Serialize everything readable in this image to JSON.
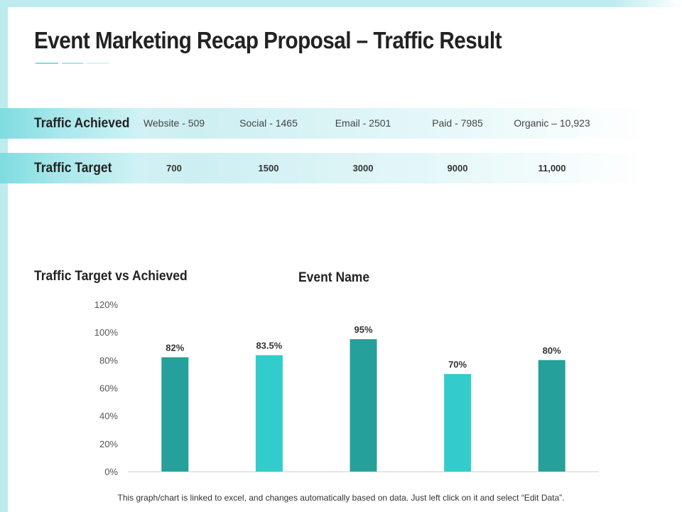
{
  "slide": {
    "title": "Event Marketing Recap Proposal – Traffic Result",
    "accent_color": "#26a69a",
    "accent_color_light": "#33cccc"
  },
  "traffic_achieved": {
    "label": "Traffic Achieved",
    "items": [
      "Website - 509",
      "Social - 1465",
      "Email - 2501",
      "Paid - 7985",
      "Organic – 10,923"
    ]
  },
  "traffic_target": {
    "label": "Traffic Target",
    "items": [
      "700",
      "1500",
      "3000",
      "9000",
      "11,000"
    ]
  },
  "chart_section_title": "Traffic Target vs Achieved",
  "footnote": "This graph/chart is linked to excel, and changes automatically based on data. Just left click on it and select “Edit Data”.",
  "chart_data": {
    "type": "bar",
    "title": "Event Name",
    "xlabel": "",
    "ylabel": "",
    "categories": [
      "",
      "",
      "",
      "",
      ""
    ],
    "values": [
      82,
      83.5,
      95,
      70,
      80
    ],
    "data_labels": [
      "82%",
      "83.5%",
      "95%",
      "70%",
      "80%"
    ],
    "bar_colors": [
      "#26a09a",
      "#33cccc",
      "#26a09a",
      "#33cccc",
      "#26a09a"
    ],
    "ylim": [
      0,
      120
    ],
    "yticks": [
      0,
      20,
      40,
      60,
      80,
      100,
      120
    ],
    "ytick_labels": [
      "0%",
      "20%",
      "40%",
      "60%",
      "80%",
      "100%",
      "120%"
    ],
    "grid": false,
    "legend": "none"
  }
}
